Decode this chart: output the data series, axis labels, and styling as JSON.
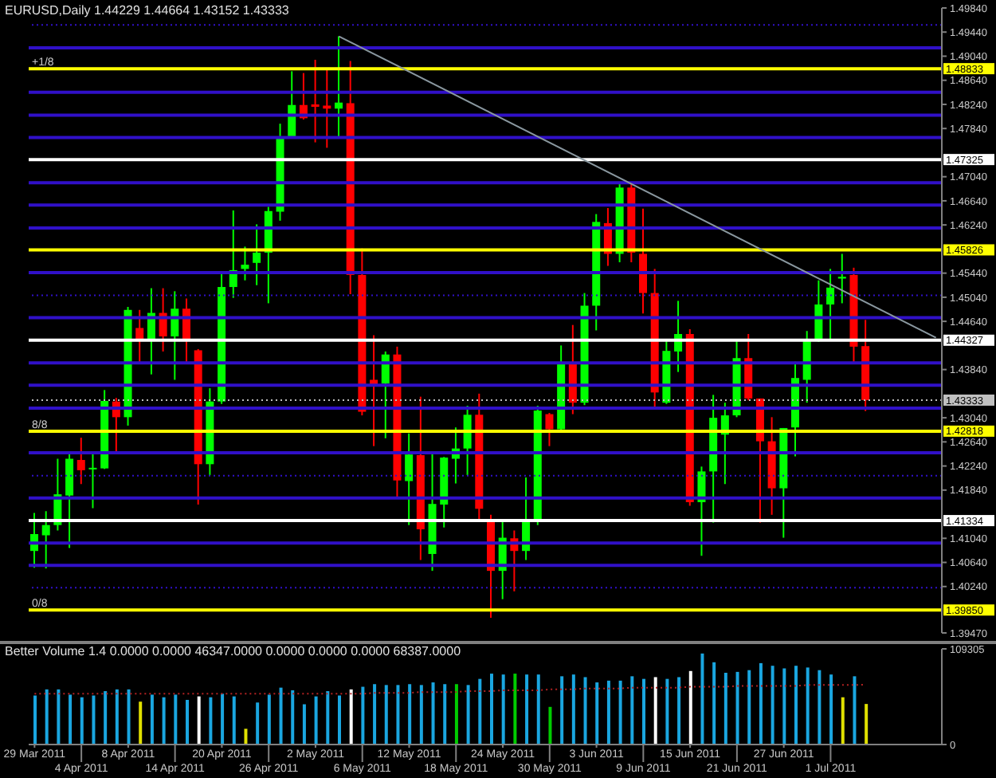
{
  "chart_data": [
    {
      "type": "candlestick",
      "title": "EURUSD,Daily 1.44229 1.44664 1.43152 1.43333",
      "categories": [
        null,
        null,
        null,
        null,
        null,
        null,
        null,
        null,
        null,
        null,
        null,
        null,
        null,
        null,
        null,
        null,
        null,
        null,
        null,
        null,
        null,
        null,
        null,
        null,
        null,
        null,
        null,
        null,
        null,
        null,
        null,
        null,
        null,
        null,
        null,
        null,
        null,
        null,
        null,
        null,
        null,
        null,
        null,
        null,
        null,
        null,
        null,
        null,
        null,
        null,
        null,
        null,
        null,
        null,
        null,
        null,
        null,
        null,
        null,
        null,
        null,
        null,
        null,
        null,
        null,
        null,
        null,
        null,
        null,
        null,
        null,
        null,
        null,
        null,
        null,
        null,
        null,
        null
      ],
      "ohlc": [
        [
          1.4083,
          1.4146,
          1.4055,
          1.4111
        ],
        [
          1.4109,
          1.4149,
          1.4054,
          1.4126
        ],
        [
          1.4126,
          1.4236,
          1.4117,
          1.4177
        ],
        [
          1.4175,
          1.4245,
          1.4088,
          1.4236
        ],
        [
          1.4234,
          1.4271,
          1.4194,
          1.4217
        ],
        [
          1.422,
          1.4245,
          1.4154,
          1.4221
        ],
        [
          1.422,
          1.435,
          1.4219,
          1.4332
        ],
        [
          1.4331,
          1.4337,
          1.4244,
          1.4305
        ],
        [
          1.4305,
          1.4488,
          1.4291,
          1.4483
        ],
        [
          1.4453,
          1.4483,
          1.4397,
          1.4431
        ],
        [
          1.4431,
          1.4519,
          1.4376,
          1.4478
        ],
        [
          1.4478,
          1.4519,
          1.4414,
          1.4439
        ],
        [
          1.4439,
          1.4514,
          1.4367,
          1.4485
        ],
        [
          1.4485,
          1.4502,
          1.4397,
          1.4431
        ],
        [
          1.4416,
          1.4418,
          1.416,
          1.4227
        ],
        [
          1.4227,
          1.4353,
          1.4209,
          1.4331
        ],
        [
          1.4331,
          1.4543,
          1.4327,
          1.4521
        ],
        [
          1.4521,
          1.4648,
          1.4503,
          1.4549
        ],
        [
          1.4551,
          1.4588,
          1.4532,
          1.4558
        ],
        [
          1.4561,
          1.4625,
          1.4524,
          1.4578
        ],
        [
          1.4578,
          1.4654,
          1.4494,
          1.4647
        ],
        [
          1.4646,
          1.4792,
          1.4631,
          1.4768
        ],
        [
          1.4769,
          1.4879,
          1.4768,
          1.4823
        ],
        [
          1.4823,
          1.4876,
          1.4799,
          1.4801
        ],
        [
          1.4824,
          1.4898,
          1.4761,
          1.482
        ],
        [
          1.4822,
          1.4884,
          1.4752,
          1.4817
        ],
        [
          1.4817,
          1.4937,
          1.4771,
          1.4827
        ],
        [
          1.4826,
          1.4896,
          1.4509,
          1.4541
        ],
        [
          1.4541,
          1.4585,
          1.4308,
          1.4314
        ],
        [
          1.4367,
          1.4441,
          1.4257,
          1.4359
        ],
        [
          1.4361,
          1.4414,
          1.427,
          1.4409
        ],
        [
          1.4409,
          1.4422,
          1.4172,
          1.42
        ],
        [
          1.4199,
          1.4278,
          1.4126,
          1.4243
        ],
        [
          1.4242,
          1.4339,
          1.4068,
          1.4119
        ],
        [
          1.4078,
          1.4244,
          1.405,
          1.4161
        ],
        [
          1.416,
          1.4239,
          1.4122,
          1.4238
        ],
        [
          1.4236,
          1.4288,
          1.4195,
          1.4253
        ],
        [
          1.4253,
          1.4324,
          1.4209,
          1.4309
        ],
        [
          1.4309,
          1.4344,
          1.4134,
          1.4153
        ],
        [
          1.4133,
          1.4143,
          1.3972,
          1.405
        ],
        [
          1.405,
          1.4133,
          1.4003,
          1.4105
        ],
        [
          1.4104,
          1.4117,
          1.4016,
          1.4083
        ],
        [
          1.4083,
          1.4205,
          1.4068,
          1.4136
        ],
        [
          1.4134,
          1.4324,
          1.4126,
          1.4316
        ],
        [
          1.431,
          1.4312,
          1.4257,
          1.4285
        ],
        [
          1.4285,
          1.4424,
          1.4284,
          1.4393
        ],
        [
          1.4393,
          1.4458,
          1.431,
          1.4329
        ],
        [
          1.4329,
          1.4511,
          1.4325,
          1.449
        ],
        [
          1.449,
          1.4642,
          1.4449,
          1.4629
        ],
        [
          1.4627,
          1.4652,
          1.4556,
          1.4576
        ],
        [
          1.4576,
          1.4693,
          1.4562,
          1.4686
        ],
        [
          1.4686,
          1.4693,
          1.4562,
          1.4578
        ],
        [
          1.4576,
          1.4651,
          1.4477,
          1.4511
        ],
        [
          1.4511,
          1.4551,
          1.4322,
          1.4346
        ],
        [
          1.4329,
          1.4431,
          1.4327,
          1.4415
        ],
        [
          1.4414,
          1.4498,
          1.438,
          1.4443
        ],
        [
          1.4443,
          1.4451,
          1.4158,
          1.4164
        ],
        [
          1.4164,
          1.4223,
          1.4075,
          1.4215
        ],
        [
          1.4215,
          1.4342,
          1.413,
          1.4304
        ],
        [
          1.4276,
          1.4329,
          1.4194,
          1.4308
        ],
        [
          1.4308,
          1.4431,
          1.4305,
          1.4403
        ],
        [
          1.4403,
          1.4443,
          1.4333,
          1.4336
        ],
        [
          1.4336,
          1.4336,
          1.413,
          1.4265
        ],
        [
          1.4265,
          1.4305,
          1.4143,
          1.4187
        ],
        [
          1.4187,
          1.4287,
          1.4105,
          1.4287
        ],
        [
          1.4288,
          1.4397,
          1.424,
          1.437
        ],
        [
          1.4367,
          1.4448,
          1.4329,
          1.4435
        ],
        [
          1.4431,
          1.4532,
          1.443,
          1.4492
        ],
        [
          1.4492,
          1.4551,
          1.4435,
          1.452
        ],
        [
          1.4535,
          1.4576,
          1.4494,
          1.4538
        ],
        [
          1.4541,
          1.4553,
          1.4397,
          1.4422
        ],
        [
          1.44229,
          1.44664,
          1.43152,
          1.43333
        ],
        null,
        null,
        null,
        null,
        null,
        null
      ],
      "colors": [
        "#00ff00",
        "#00ff00",
        "#00ff00",
        "#00ff00",
        "#ff0000",
        "#00ff00",
        "#00ff00",
        "#ff0000",
        "#00ff00",
        "#ff0000",
        "#00ff00",
        "#ff0000",
        "#00ff00",
        "#ff0000",
        "#ff0000",
        "#00ff00",
        "#00ff00",
        "#00ff00",
        "#00ff00",
        "#00ff00",
        "#00ff00",
        "#00ff00",
        "#00ff00",
        "#ff0000",
        "#ff0000",
        "#ff0000",
        "#00ff00",
        "#ff0000",
        "#ff0000",
        "#ff0000",
        "#00ff00",
        "#ff0000",
        "#00ff00",
        "#ff0000",
        "#00ff00",
        "#00ff00",
        "#00ff00",
        "#00ff00",
        "#ff0000",
        "#ff0000",
        "#00ff00",
        "#ff0000",
        "#00ff00",
        "#00ff00",
        "#ff0000",
        "#00ff00",
        "#ff0000",
        "#00ff00",
        "#00ff00",
        "#ff0000",
        "#00ff00",
        "#ff0000",
        "#ff0000",
        "#ff0000",
        "#00ff00",
        "#00ff00",
        "#ff0000",
        "#00ff00",
        "#00ff00",
        "#00ff00",
        "#00ff00",
        "#ff0000",
        "#ff0000",
        "#ff0000",
        "#00ff00",
        "#00ff00",
        "#00ff00",
        "#00ff00",
        "#00ff00",
        "#00ff00",
        "#ff0000",
        "#ff0000",
        null,
        null,
        null,
        null,
        null,
        null
      ],
      "series": [
        {
          "type": "line",
          "color": "#8a98a0",
          "values": [
            null,
            null,
            null,
            null,
            null,
            null,
            null,
            null,
            null,
            null,
            null,
            null,
            null,
            null,
            null,
            null,
            null,
            null,
            null,
            null,
            null,
            null,
            null,
            null,
            null,
            null,
            1.4937,
            null,
            null,
            null,
            null,
            null,
            null,
            null,
            null,
            null,
            null,
            null,
            null,
            null,
            null,
            null,
            null,
            null,
            null,
            null,
            null,
            null,
            null,
            null,
            null,
            null,
            null,
            null,
            null,
            null,
            null,
            null,
            null,
            null,
            null,
            null,
            null,
            null,
            null,
            null,
            null,
            null,
            null,
            null,
            null,
            null,
            null,
            null,
            null,
            null,
            null,
            1.4437
          ]
        }
      ],
      "ylim": [
        1.3947,
        1.4984
      ],
      "yticks": [
        {
          "value": 1.4984,
          "label": "1.49840"
        },
        {
          "value": 1.4944,
          "label": "1.49440"
        },
        {
          "value": 1.4904,
          "label": "1.49040"
        },
        {
          "value": 1.4864,
          "label": "1.48640"
        },
        {
          "value": 1.4824,
          "label": "1.48240"
        },
        {
          "value": 1.4784,
          "label": "1.47840"
        },
        {
          "value": 1.4704,
          "label": "1.47040"
        },
        {
          "value": 1.4664,
          "label": "1.46640"
        },
        {
          "value": 1.4624,
          "label": "1.46240"
        },
        {
          "value": 1.4544,
          "label": "1.45440"
        },
        {
          "value": 1.4504,
          "label": "1.45040"
        },
        {
          "value": 1.4464,
          "label": "1.44640"
        },
        {
          "value": 1.4384,
          "label": "1.43840"
        },
        {
          "value": 1.4304,
          "label": "1.43040"
        },
        {
          "value": 1.4264,
          "label": "1.42640"
        },
        {
          "value": 1.4224,
          "label": "1.42240"
        },
        {
          "value": 1.4184,
          "label": "1.41840"
        },
        {
          "value": 1.4104,
          "label": "1.41040"
        },
        {
          "value": 1.4064,
          "label": "1.40640"
        },
        {
          "value": 1.4024,
          "label": "1.40240"
        },
        {
          "value": 1.3947,
          "label": "1.39470"
        }
      ],
      "ref_lines": [
        {
          "axis": "y",
          "value": 1.4956,
          "color": "#3010c8",
          "line_style": "dotted"
        },
        {
          "axis": "y",
          "value": 1.4918,
          "color": "#3010c8"
        },
        {
          "axis": "y",
          "value": 1.48833,
          "label": "1.48833",
          "color": "#ffff00"
        },
        {
          "axis": "y",
          "value": 1.4844,
          "color": "#3010c8"
        },
        {
          "axis": "y",
          "value": 1.4806,
          "color": "#3010c8"
        },
        {
          "axis": "y",
          "value": 1.4769,
          "color": "#3010c8"
        },
        {
          "axis": "y",
          "value": 1.47325,
          "label": "1.47325",
          "color": "#ffffff"
        },
        {
          "axis": "y",
          "value": 1.4694,
          "color": "#3010c8"
        },
        {
          "axis": "y",
          "value": 1.4657,
          "color": "#3010c8"
        },
        {
          "axis": "y",
          "value": 1.4619,
          "color": "#3010c8"
        },
        {
          "axis": "y",
          "value": 1.45826,
          "label": "1.45826",
          "color": "#ffff00"
        },
        {
          "axis": "y",
          "value": 1.4545,
          "color": "#3010c8"
        },
        {
          "axis": "y",
          "value": 1.4507,
          "color": "#3010c8",
          "line_style": "dotted"
        },
        {
          "axis": "y",
          "value": 1.447,
          "color": "#3010c8"
        },
        {
          "axis": "y",
          "value": 1.44327,
          "label": "1.44327",
          "color": "#ffffff"
        },
        {
          "axis": "y",
          "value": 1.4395,
          "color": "#3010c8"
        },
        {
          "axis": "y",
          "value": 1.4358,
          "color": "#3010c8"
        },
        {
          "axis": "y",
          "value": 1.43333,
          "label": "1.43333",
          "color": "#c0c0c0",
          "line_style": "dotted"
        },
        {
          "axis": "y",
          "value": 1.432,
          "color": "#3010c8"
        },
        {
          "axis": "y",
          "value": 1.42818,
          "label": "1.42818",
          "color": "#ffff00"
        },
        {
          "axis": "y",
          "value": 1.4246,
          "color": "#3010c8"
        },
        {
          "axis": "y",
          "value": 1.4208,
          "color": "#3010c8",
          "line_style": "dotted"
        },
        {
          "axis": "y",
          "value": 1.4171,
          "color": "#3010c8"
        },
        {
          "axis": "y",
          "value": 1.41334,
          "label": "1.41334",
          "color": "#ffffff"
        },
        {
          "axis": "y",
          "value": 1.4096,
          "color": "#3010c8"
        },
        {
          "axis": "y",
          "value": 1.4059,
          "color": "#3010c8"
        },
        {
          "axis": "y",
          "value": 1.4022,
          "color": "#3010c8",
          "line_style": "dotted"
        },
        {
          "axis": "y",
          "value": 1.3985,
          "label": "1.39850",
          "color": "#ffff00"
        }
      ],
      "annotations": [
        {
          "text": "+1/8",
          "y": 1.48833
        },
        {
          "text": "8/8",
          "y": 1.42818
        },
        {
          "text": "0/8",
          "y": 1.3985
        }
      ],
      "tick_labels": "y"
    },
    {
      "type": "bar",
      "title": "Better Volume 1.4 0.0000 0.0000 46347.0000 0.0000 0.0000 0.0000 68387.0000",
      "categories": [
        "29 Mar 2011",
        null,
        null,
        null,
        "4 Apr 2011",
        null,
        null,
        null,
        "8 Apr 2011",
        null,
        null,
        null,
        "14 Apr 2011",
        null,
        null,
        null,
        "20 Apr 2011",
        null,
        null,
        null,
        "26 Apr 2011",
        null,
        null,
        null,
        "2 May 2011",
        null,
        null,
        null,
        "6 May 2011",
        null,
        null,
        null,
        "12 May 2011",
        null,
        null,
        null,
        "18 May 2011",
        null,
        null,
        null,
        "24 May 2011",
        null,
        null,
        null,
        "30 May 2011",
        null,
        null,
        null,
        "3 Jun 2011",
        null,
        null,
        null,
        "9 Jun 2011",
        null,
        null,
        null,
        "15 Jun 2011",
        null,
        null,
        null,
        "21 Jun 2011",
        null,
        null,
        null,
        "27 Jun 2011",
        null,
        null,
        null,
        "1 Jul 2011",
        null,
        null,
        null,
        null,
        null,
        null,
        null,
        null,
        null
      ],
      "series": [
        {
          "type": "bar",
          "values": [
            56000,
            63000,
            63000,
            57000,
            54000,
            56000,
            61000,
            63000,
            63000,
            49000,
            57000,
            54000,
            57000,
            51000,
            55000,
            54000,
            58000,
            55000,
            18000,
            48000,
            57000,
            65000,
            62000,
            46000,
            55000,
            61000,
            56000,
            63000,
            66000,
            69000,
            68000,
            68000,
            69000,
            68000,
            71000,
            69000,
            69000,
            68000,
            75000,
            81000,
            80000,
            81000,
            80000,
            80000,
            43000,
            78000,
            80000,
            77000,
            71000,
            73000,
            73000,
            78000,
            75000,
            77000,
            75000,
            77000,
            84000,
            104000,
            94000,
            82000,
            83000,
            85000,
            93000,
            90000,
            87000,
            90000,
            88000,
            85000,
            80000,
            54000,
            78000,
            46347,
            null,
            null,
            null,
            null,
            null,
            null
          ],
          "colors": [
            "#1aa6e0",
            "#1aa6e0",
            "#1aa6e0",
            "#1aa6e0",
            "#1aa6e0",
            "#1aa6e0",
            "#1aa6e0",
            "#1aa6e0",
            "#1aa6e0",
            "#e0e000",
            "#1aa6e0",
            "#1aa6e0",
            "#1aa6e0",
            "#1aa6e0",
            "#ffffff",
            "#1aa6e0",
            "#1aa6e0",
            "#1aa6e0",
            "#e0e000",
            "#1aa6e0",
            "#1aa6e0",
            "#1aa6e0",
            "#1aa6e0",
            "#1aa6e0",
            "#1aa6e0",
            "#1aa6e0",
            "#1aa6e0",
            "#ffffff",
            "#1aa6e0",
            "#1aa6e0",
            "#1aa6e0",
            "#1aa6e0",
            "#1aa6e0",
            "#1aa6e0",
            "#1aa6e0",
            "#1aa6e0",
            "#00cc00",
            "#1aa6e0",
            "#1aa6e0",
            "#1aa6e0",
            "#1aa6e0",
            "#00cc00",
            "#1aa6e0",
            "#1aa6e0",
            "#00cc00",
            "#1aa6e0",
            "#1aa6e0",
            "#1aa6e0",
            "#1aa6e0",
            "#1aa6e0",
            "#1aa6e0",
            "#1aa6e0",
            "#1aa6e0",
            "#ffffff",
            "#1aa6e0",
            "#1aa6e0",
            "#ffffff",
            "#1aa6e0",
            "#1aa6e0",
            "#1aa6e0",
            "#1aa6e0",
            "#1aa6e0",
            "#1aa6e0",
            "#1aa6e0",
            "#1aa6e0",
            "#1aa6e0",
            "#1aa6e0",
            "#1aa6e0",
            "#1aa6e0",
            "#e0e000",
            "#1aa6e0",
            "#e0e000",
            null,
            null,
            null,
            null,
            null,
            null
          ]
        },
        {
          "type": "line",
          "color": "#b22222",
          "line_style": "dotted",
          "values": [
            58000,
            58000,
            58000,
            58000,
            58000,
            58000,
            58000,
            58000,
            58000,
            58000,
            58000,
            58000,
            58000,
            58000,
            58000,
            58000,
            58000,
            58000,
            58000,
            58000,
            58000,
            58000,
            58000,
            58000,
            58000,
            58000,
            58000,
            58000,
            58000,
            59000,
            59000,
            59000,
            59000,
            60000,
            60000,
            60000,
            60000,
            61000,
            61000,
            61000,
            62000,
            62000,
            62000,
            62000,
            63000,
            63000,
            63000,
            64000,
            64000,
            64000,
            64000,
            65000,
            65000,
            65000,
            65000,
            65000,
            66000,
            66000,
            66000,
            66000,
            67000,
            67000,
            67000,
            67000,
            67000,
            67000,
            68000,
            68000,
            68000,
            68000,
            68000,
            68387,
            null,
            null,
            null,
            null,
            null,
            null
          ]
        }
      ],
      "ylim": [
        0,
        109305
      ],
      "yticks": [
        0,
        109305
      ]
    }
  ]
}
